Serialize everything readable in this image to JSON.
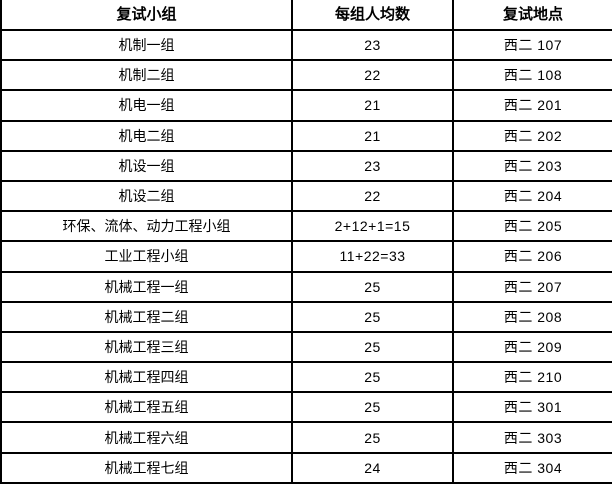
{
  "table": {
    "columns": [
      {
        "label": "复试小组"
      },
      {
        "label": "每组人均数"
      },
      {
        "label": "复试地点"
      }
    ],
    "rows": [
      {
        "group": "机制一组",
        "count": "23",
        "location": "西二 107"
      },
      {
        "group": "机制二组",
        "count": "22",
        "location": "西二 108"
      },
      {
        "group": "机电一组",
        "count": "21",
        "location": "西二 201"
      },
      {
        "group": "机电二组",
        "count": "21",
        "location": "西二 202"
      },
      {
        "group": "机设一组",
        "count": "23",
        "location": "西二 203"
      },
      {
        "group": "机设二组",
        "count": "22",
        "location": "西二 204"
      },
      {
        "group": "环保、流体、动力工程小组",
        "count": "2+12+1=15",
        "location": "西二 205"
      },
      {
        "group": "工业工程小组",
        "count": "11+22=33",
        "location": "西二 206"
      },
      {
        "group": "机械工程一组",
        "count": "25",
        "location": "西二 207"
      },
      {
        "group": "机械工程二组",
        "count": "25",
        "location": "西二 208"
      },
      {
        "group": "机械工程三组",
        "count": "25",
        "location": "西二 209"
      },
      {
        "group": "机械工程四组",
        "count": "25",
        "location": "西二 210"
      },
      {
        "group": "机械工程五组",
        "count": "25",
        "location": "西二 301"
      },
      {
        "group": "机械工程六组",
        "count": "25",
        "location": "西二 303"
      },
      {
        "group": "机械工程七组",
        "count": "24",
        "location": "西二 304"
      }
    ],
    "colors": {
      "border": "#000000",
      "background": "#ffffff",
      "text": "#000000"
    }
  }
}
